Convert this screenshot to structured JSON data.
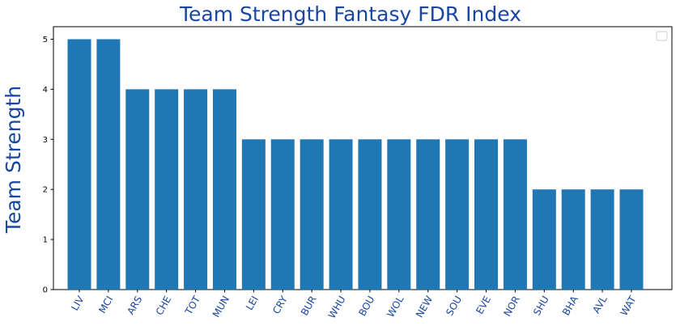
{
  "chart_data": {
    "type": "bar",
    "title": "Team Strength Fantasy FDR Index",
    "xlabel": "",
    "ylabel": "Team Strength",
    "categories": [
      "LIV",
      "MCI",
      "ARS",
      "CHE",
      "TOT",
      "MUN",
      "LEI",
      "CRY",
      "BUR",
      "WHU",
      "BOU",
      "WOL",
      "NEW",
      "SOU",
      "EVE",
      "NOR",
      "SHU",
      "BHA",
      "AVL",
      "WAT"
    ],
    "values": [
      5,
      5,
      4,
      4,
      4,
      4,
      3,
      3,
      3,
      3,
      3,
      3,
      3,
      3,
      3,
      3,
      2,
      2,
      2,
      2
    ],
    "ylim": [
      0,
      5.25
    ],
    "yticks": [
      0,
      1,
      2,
      3,
      4,
      5
    ],
    "grid": false,
    "legend": {
      "position": "top-right",
      "entries": []
    }
  },
  "colors": {
    "bar": "#1f77b4",
    "title": "#1846a0",
    "ylabel": "#1846a0",
    "xtick": "#1846a0",
    "axis": "#000000"
  }
}
